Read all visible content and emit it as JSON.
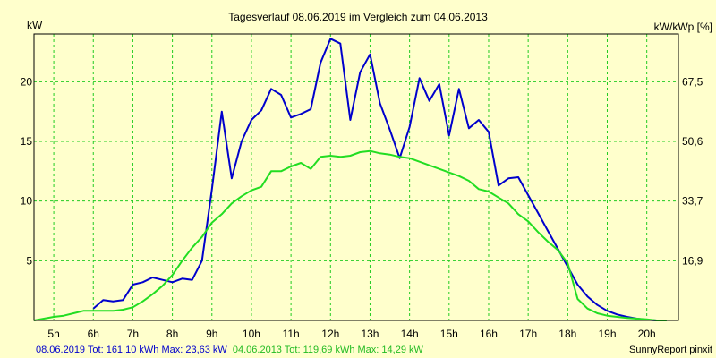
{
  "chart_data": {
    "type": "line",
    "title": "Tagesverlauf 08.06.2019 im Vergleich zum 04.06.2013",
    "ylabel_left": "kW",
    "ylabel_right": "kW/kWp [%]",
    "xlim": [
      4.5,
      20.8
    ],
    "ylim": [
      0,
      24
    ],
    "x_ticks": [
      5,
      6,
      7,
      8,
      9,
      10,
      11,
      12,
      13,
      14,
      15,
      16,
      17,
      18,
      19,
      20
    ],
    "x_tick_labels": [
      "5h",
      "6h",
      "7h",
      "8h",
      "9h",
      "10h",
      "11h",
      "12h",
      "13h",
      "14h",
      "15h",
      "16h",
      "17h",
      "18h",
      "19h",
      "20h"
    ],
    "y_ticks_left": [
      5,
      10,
      15,
      20
    ],
    "y_tick_labels_left": [
      "5",
      "10",
      "15",
      "20"
    ],
    "y_tick_labels_right": [
      "16,9",
      "33,7",
      "50,6",
      "67,5"
    ],
    "grid": true,
    "series": [
      {
        "color": "#0000cc",
        "x": [
          6.0,
          6.25,
          6.5,
          6.75,
          7.0,
          7.25,
          7.5,
          7.75,
          8.0,
          8.25,
          8.5,
          8.75,
          9.0,
          9.25,
          9.5,
          9.75,
          10.0,
          10.25,
          10.5,
          10.75,
          11.0,
          11.25,
          11.5,
          11.75,
          12.0,
          12.25,
          12.5,
          12.75,
          13.0,
          13.25,
          13.5,
          13.75,
          14.0,
          14.25,
          14.5,
          14.75,
          15.0,
          15.25,
          15.5,
          15.75,
          16.0,
          16.25,
          16.5,
          16.75,
          17.0,
          17.25,
          17.5,
          17.75,
          18.0,
          18.25,
          18.5,
          18.75,
          19.0,
          19.25,
          19.5,
          19.75,
          20.0,
          20.25,
          20.5
        ],
        "y": [
          1.0,
          1.7,
          1.6,
          1.7,
          3.0,
          3.2,
          3.6,
          3.4,
          3.2,
          3.5,
          3.4,
          5.0,
          11.0,
          17.5,
          11.9,
          15.0,
          16.8,
          17.6,
          19.4,
          18.9,
          17.0,
          17.3,
          17.7,
          21.6,
          23.6,
          23.2,
          16.8,
          20.8,
          22.3,
          18.2,
          16.0,
          13.6,
          16.2,
          20.3,
          18.4,
          19.8,
          15.5,
          19.4,
          16.1,
          16.8,
          15.8,
          11.3,
          11.9,
          12.0,
          10.5,
          9.0,
          7.5,
          6.0,
          4.5,
          3.0,
          2.0,
          1.3,
          0.8,
          0.5,
          0.3,
          0.15,
          0.05,
          0.0,
          0.0
        ]
      },
      {
        "color": "#22dd22",
        "x": [
          4.5,
          4.75,
          5.0,
          5.25,
          5.5,
          5.75,
          6.0,
          6.25,
          6.5,
          6.75,
          7.0,
          7.25,
          7.5,
          7.75,
          8.0,
          8.25,
          8.5,
          8.75,
          9.0,
          9.25,
          9.5,
          9.75,
          10.0,
          10.25,
          10.5,
          10.75,
          11.0,
          11.25,
          11.5,
          11.75,
          12.0,
          12.25,
          12.5,
          12.75,
          13.0,
          13.25,
          13.5,
          13.75,
          14.0,
          14.25,
          14.5,
          14.75,
          15.0,
          15.25,
          15.5,
          15.75,
          16.0,
          16.25,
          16.5,
          16.75,
          17.0,
          17.25,
          17.5,
          17.75,
          18.0,
          18.25,
          18.5,
          18.75,
          19.0,
          19.25,
          19.5,
          19.75,
          20.0,
          20.25,
          20.5
        ],
        "y": [
          0.0,
          0.15,
          0.3,
          0.4,
          0.6,
          0.8,
          0.8,
          0.8,
          0.8,
          0.9,
          1.1,
          1.6,
          2.2,
          2.9,
          3.8,
          5.0,
          6.1,
          7.0,
          8.2,
          8.9,
          9.8,
          10.4,
          10.9,
          11.2,
          12.5,
          12.5,
          12.9,
          13.2,
          12.7,
          13.7,
          13.8,
          13.7,
          13.8,
          14.1,
          14.2,
          14.0,
          13.9,
          13.7,
          13.6,
          13.3,
          13.0,
          12.7,
          12.4,
          12.1,
          11.7,
          11.0,
          10.8,
          10.3,
          9.8,
          8.9,
          8.3,
          7.4,
          6.6,
          5.9,
          4.8,
          1.8,
          1.0,
          0.6,
          0.4,
          0.3,
          0.2,
          0.15,
          0.1,
          0.0,
          0.0
        ]
      }
    ]
  },
  "footer": {
    "stats_1": "08.06.2019 Tot: 161,10 kWh Max: 23,63 kW",
    "stats_2": "04.06.2013 Tot: 119,69 kWh Max: 14,29 kW",
    "credit": "SunnyReport pinxit"
  },
  "colors": {
    "background": "#ffffcc",
    "plot_area": "#ffffcc",
    "grid": "#22cc22",
    "series_1": "#0000cc",
    "series_2": "#22dd22"
  }
}
